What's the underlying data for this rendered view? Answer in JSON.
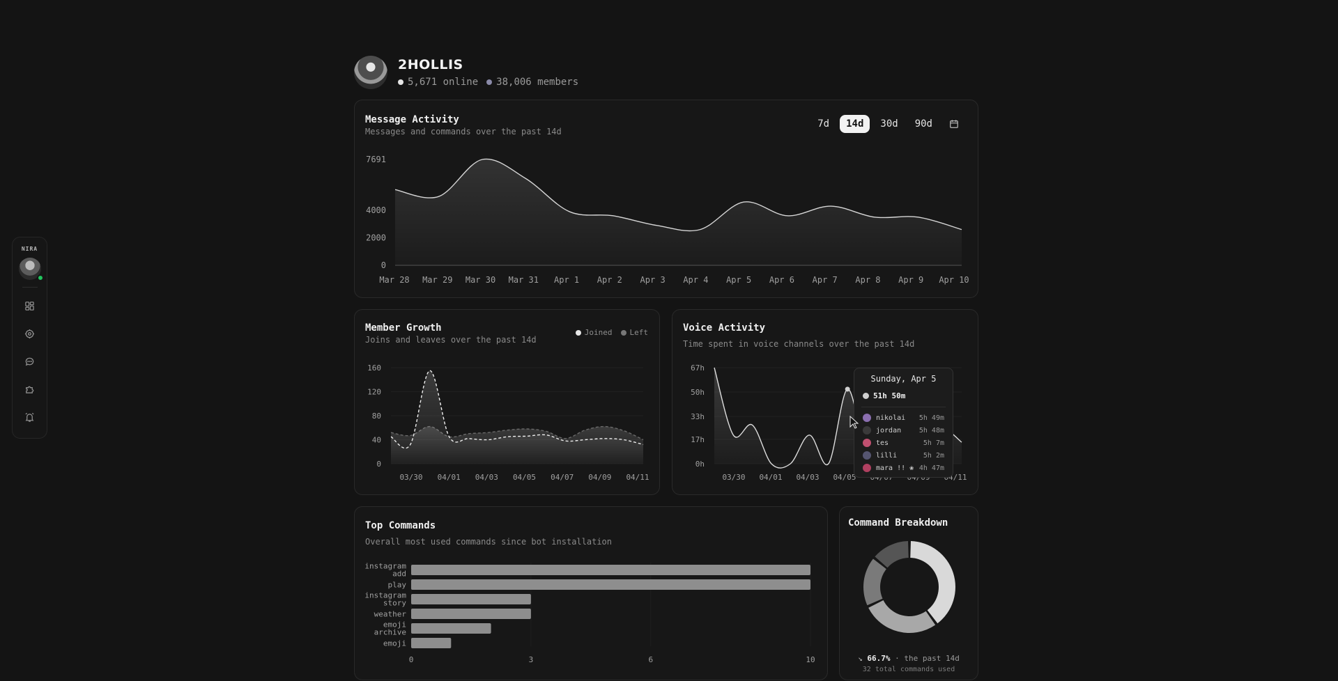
{
  "rail": {
    "brand": "NIRA",
    "items": [
      {
        "name": "dashboard-icon"
      },
      {
        "name": "settings-cog-icon"
      },
      {
        "name": "chat-icon"
      },
      {
        "name": "puzzle-icon"
      },
      {
        "name": "alarm-icon"
      }
    ]
  },
  "guild": {
    "name": "2HOLLIS",
    "online": "5,671 online",
    "members": "38,006 members",
    "online_color": "#e5e5e5",
    "members_color": "#8a8aa8"
  },
  "message_activity": {
    "title": "Message Activity",
    "subtitle": "Messages and commands over the past 14d",
    "ranges": [
      "7d",
      "14d",
      "30d",
      "90d"
    ],
    "active_range": "14d",
    "chart_data": {
      "type": "area",
      "x": [
        "Mar 28",
        "Mar 29",
        "Mar 30",
        "Mar 31",
        "Apr 1",
        "Apr 2",
        "Apr 3",
        "Apr 4",
        "Apr 5",
        "Apr 6",
        "Apr 7",
        "Apr 8",
        "Apr 9",
        "Apr 10"
      ],
      "values": [
        5500,
        5000,
        7691,
        6300,
        3900,
        3600,
        2900,
        2600,
        4600,
        3600,
        4300,
        3500,
        3500,
        2600
      ],
      "y_ticks": [
        0,
        2000,
        4000,
        7691
      ],
      "ylim": [
        0,
        7691
      ]
    }
  },
  "member_growth": {
    "title": "Member Growth",
    "subtitle": "Joins and leaves over the past 14d",
    "legend": {
      "joined": "Joined",
      "left": "Left"
    },
    "chart_data": {
      "type": "line",
      "x_ticks": [
        "03/30",
        "04/01",
        "04/03",
        "04/05",
        "04/07",
        "04/09",
        "04/11"
      ],
      "y_ticks": [
        0,
        40,
        80,
        120,
        160
      ],
      "ylim": [
        0,
        160
      ],
      "series": [
        {
          "name": "Joined",
          "values": [
            45,
            32,
            155,
            45,
            42,
            40,
            45,
            46,
            48,
            38,
            40,
            42,
            40,
            32
          ]
        },
        {
          "name": "Left",
          "values": [
            52,
            47,
            62,
            45,
            50,
            52,
            56,
            58,
            54,
            42,
            56,
            62,
            55,
            40
          ]
        }
      ]
    }
  },
  "voice_activity": {
    "title": "Voice Activity",
    "subtitle": "Time spent in voice channels over the past 14d",
    "chart_data": {
      "type": "line",
      "x_ticks": [
        "03/30",
        "04/01",
        "04/03",
        "04/05",
        "04/07",
        "04/09",
        "04/11"
      ],
      "y_ticks": [
        "0h",
        "17h",
        "33h",
        "50h",
        "67h"
      ],
      "ylim": [
        0,
        67
      ],
      "values": [
        67,
        20,
        27,
        0,
        0,
        20,
        0,
        52,
        10,
        40,
        35,
        20,
        25,
        15
      ]
    },
    "tooltip": {
      "date": "Sunday, Apr 5",
      "total": "51h 50m",
      "users": [
        {
          "name": "nikolai",
          "value": "5h 49m",
          "color": "#8b6fb0"
        },
        {
          "name": "jordan",
          "value": "5h 48m",
          "color": "#3a3a3a"
        },
        {
          "name": "tes",
          "value": "5h 7m",
          "color": "#c05070"
        },
        {
          "name": "lilli",
          "value": "5h 2m",
          "color": "#555570"
        },
        {
          "name": "mara !! ❀",
          "value": "4h 47m",
          "color": "#b04060"
        }
      ]
    }
  },
  "top_commands": {
    "title": "Top Commands",
    "subtitle": "Overall most used commands since bot installation",
    "chart_data": {
      "type": "bar",
      "categories": [
        "instagram add",
        "play",
        "instagram story",
        "weather",
        "emoji archive",
        "emoji"
      ],
      "values": [
        10,
        10,
        3,
        3,
        2,
        1
      ],
      "x_ticks": [
        0,
        3,
        6,
        10
      ],
      "xlim": [
        0,
        10
      ]
    }
  },
  "command_breakdown": {
    "title": "Command Breakdown",
    "trend": "66.7%",
    "trend_suffix": "· the past 14d",
    "total": "32 total commands used",
    "chart_data": {
      "type": "pie",
      "values": [
        40,
        28,
        18,
        14
      ],
      "colors": [
        "#d9d9d9",
        "#a8a8a8",
        "#7a7a7a",
        "#555555"
      ]
    }
  }
}
